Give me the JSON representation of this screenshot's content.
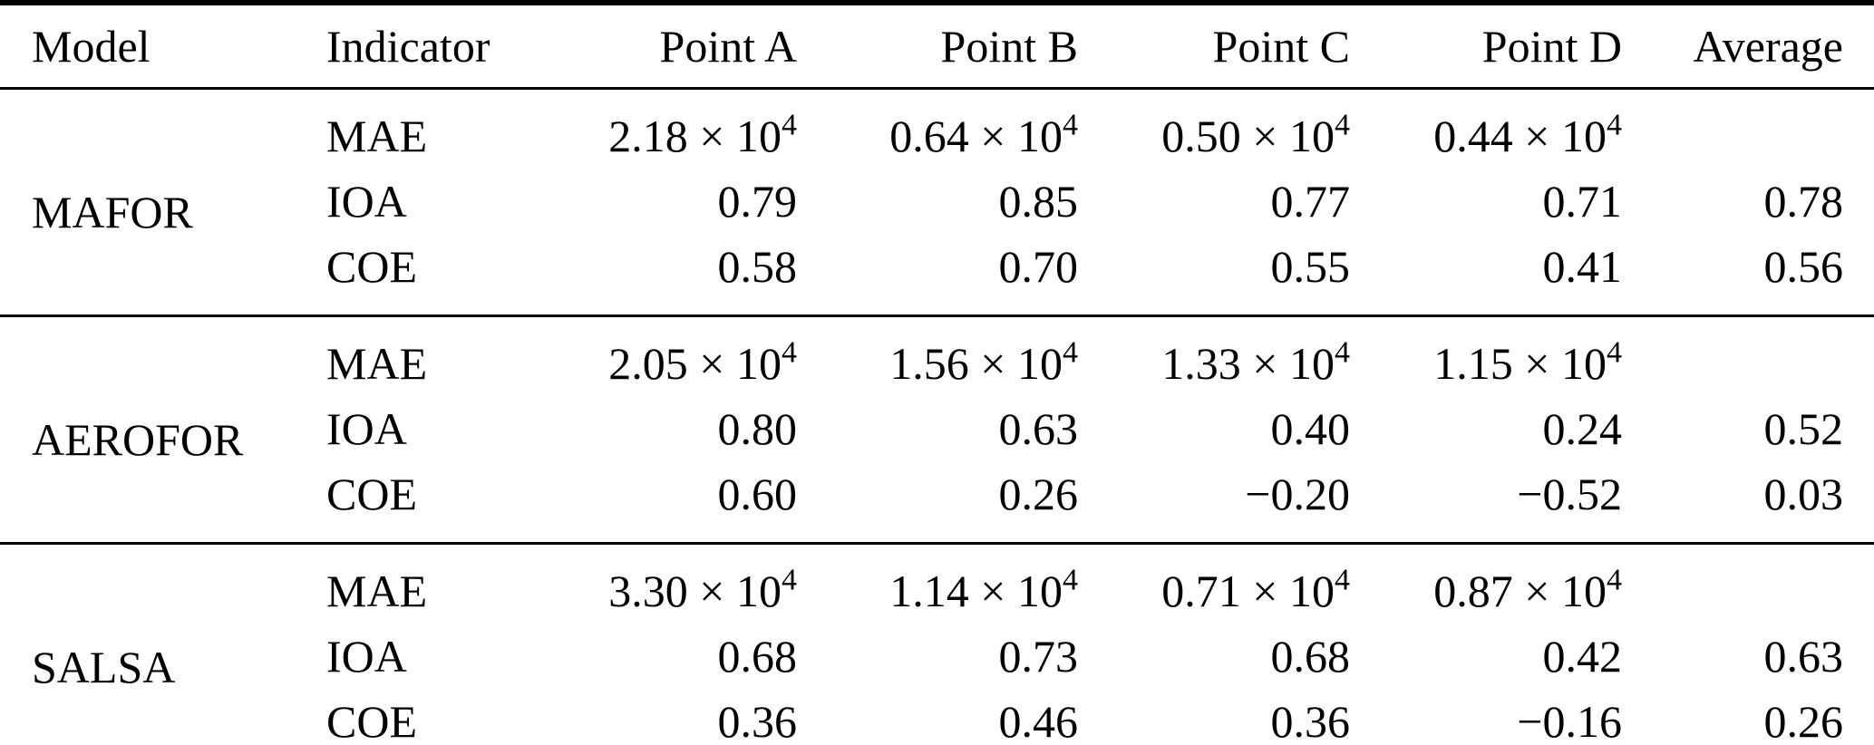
{
  "table": {
    "columns": [
      "Model",
      "Indicator",
      "Point A",
      "Point B",
      "Point C",
      "Point D",
      "Average"
    ],
    "sections": [
      {
        "model": "MAFOR",
        "rows": [
          {
            "indicator": "MAE",
            "a": "2.18 × 10",
            "a_sup": "4",
            "b": "0.64 × 10",
            "b_sup": "4",
            "c": "0.50 × 10",
            "c_sup": "4",
            "d": "0.44 × 10",
            "d_sup": "4",
            "avg": ""
          },
          {
            "indicator": "IOA",
            "a": "0.79",
            "b": "0.85",
            "c": "0.77",
            "d": "0.71",
            "avg": "0.78"
          },
          {
            "indicator": "COE",
            "a": "0.58",
            "b": "0.70",
            "c": "0.55",
            "d": "0.41",
            "avg": "0.56"
          }
        ]
      },
      {
        "model": "AEROFOR",
        "rows": [
          {
            "indicator": "MAE",
            "a": "2.05 × 10",
            "a_sup": "4",
            "b": "1.56 × 10",
            "b_sup": "4",
            "c": "1.33 × 10",
            "c_sup": "4",
            "d": "1.15 × 10",
            "d_sup": "4",
            "avg": ""
          },
          {
            "indicator": "IOA",
            "a": "0.80",
            "b": "0.63",
            "c": "0.40",
            "d": "0.24",
            "avg": "0.52"
          },
          {
            "indicator": "COE",
            "a": "0.60",
            "b": "0.26",
            "c": "−0.20",
            "d": "−0.52",
            "avg": "0.03"
          }
        ]
      },
      {
        "model": "SALSA",
        "rows": [
          {
            "indicator": "MAE",
            "a": "3.30 × 10",
            "a_sup": "4",
            "b": "1.14 × 10",
            "b_sup": "4",
            "c": "0.71 × 10",
            "c_sup": "4",
            "d": "0.87 × 10",
            "d_sup": "4",
            "avg": ""
          },
          {
            "indicator": "IOA",
            "a": "0.68",
            "b": "0.73",
            "c": "0.68",
            "d": "0.42",
            "avg": "0.63"
          },
          {
            "indicator": "COE",
            "a": "0.36",
            "b": "0.46",
            "c": "0.36",
            "d": "−0.16",
            "avg": "0.26"
          }
        ]
      }
    ]
  }
}
